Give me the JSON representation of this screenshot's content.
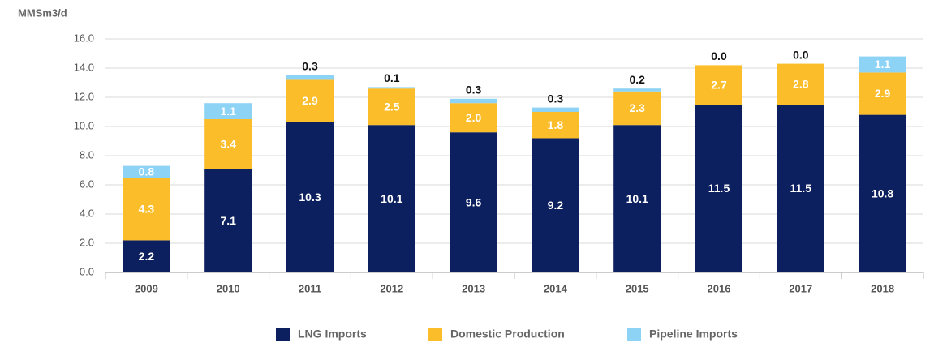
{
  "chart_data": {
    "type": "stacked_bar",
    "y_axis_label": "MMSm3/d",
    "categories": [
      "2009",
      "2010",
      "2011",
      "2012",
      "2013",
      "2014",
      "2015",
      "2016",
      "2017",
      "2018"
    ],
    "series": [
      {
        "name": "LNG Imports",
        "color": "#0c1f5e",
        "values": [
          2.2,
          7.1,
          10.3,
          10.1,
          9.6,
          9.2,
          10.1,
          11.5,
          11.5,
          10.8
        ],
        "value_labels": [
          "2.2",
          "7.1",
          "10.3",
          "10.1",
          "9.6",
          "9.2",
          "10.1",
          "11.5",
          "11.5",
          "10.8"
        ]
      },
      {
        "name": "Domestic Production",
        "color": "#fbbd29",
        "values": [
          4.3,
          3.4,
          2.9,
          2.5,
          2.0,
          1.8,
          2.3,
          2.7,
          2.8,
          2.9
        ],
        "value_labels": [
          "4.3",
          "3.4",
          "2.9",
          "2.5",
          "2.0",
          "1.8",
          "2.3",
          "2.7",
          "2.8",
          "2.9"
        ]
      },
      {
        "name": "Pipeline Imports",
        "color": "#8dd3f6",
        "values": [
          0.8,
          1.1,
          0.3,
          0.1,
          0.3,
          0.3,
          0.2,
          0,
          0,
          1.1
        ],
        "value_labels": [
          "0.8",
          "1.1",
          "0.3",
          "0.1",
          "0.3",
          "0.3",
          "0.2",
          "0.0",
          "0.0",
          "1.1"
        ]
      }
    ],
    "ylim": [
      0,
      16
    ],
    "yticks": [
      {
        "value": 0,
        "label": "0.0"
      },
      {
        "value": 2,
        "label": "2.0"
      },
      {
        "value": 4,
        "label": "4.0"
      },
      {
        "value": 6,
        "label": "6.0"
      },
      {
        "value": 8,
        "label": "8.0"
      },
      {
        "value": 10,
        "label": "10.0"
      },
      {
        "value": 12,
        "label": "12.0"
      },
      {
        "value": 14,
        "label": "14.0"
      },
      {
        "value": 16,
        "label": "16.0"
      }
    ],
    "grid": true,
    "legend": "bottom"
  }
}
